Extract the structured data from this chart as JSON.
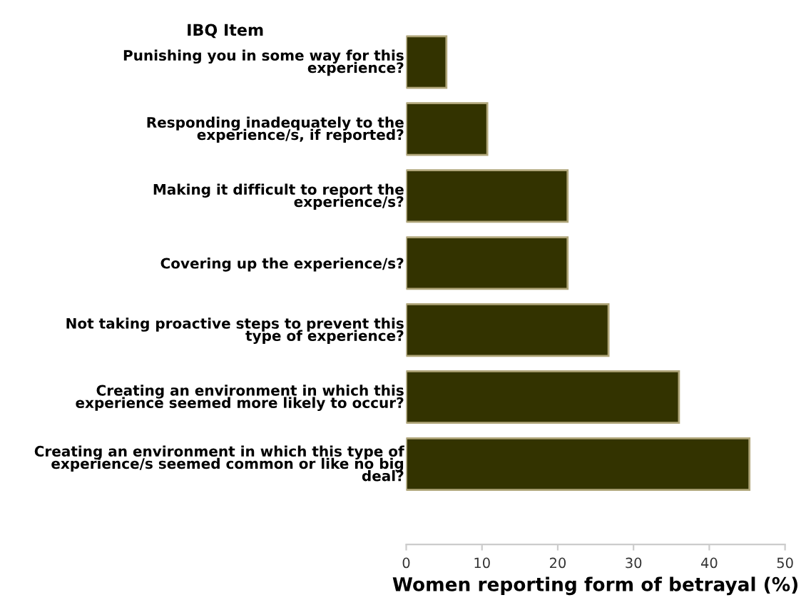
{
  "chart_data": {
    "type": "bar",
    "orientation": "horizontal",
    "ylabel": "IBQ Item",
    "xlabel": "Women reporting form of betrayal (%)",
    "categories": [
      "Punishing you in some way for this\nexperience?",
      "Responding inadequately to the\nexperience/s, if reported?",
      "Making it difficult to report the\nexperience/s?",
      "Covering up the experience/s?",
      "Not taking proactive steps to prevent this\ntype of experience?",
      "Creating an environment in which this\nexperience seemed more likely to occur?",
      "Creating an environment in which this type of\nexperience/s seemed common or like no big\ndeal?"
    ],
    "values": [
      5.3,
      10.7,
      21.3,
      21.3,
      26.7,
      36,
      45.3
    ],
    "color": "#333300",
    "xlim": [
      0,
      50
    ],
    "xticks": [
      0,
      10,
      20,
      30,
      40,
      50
    ],
    "grid": false
  }
}
